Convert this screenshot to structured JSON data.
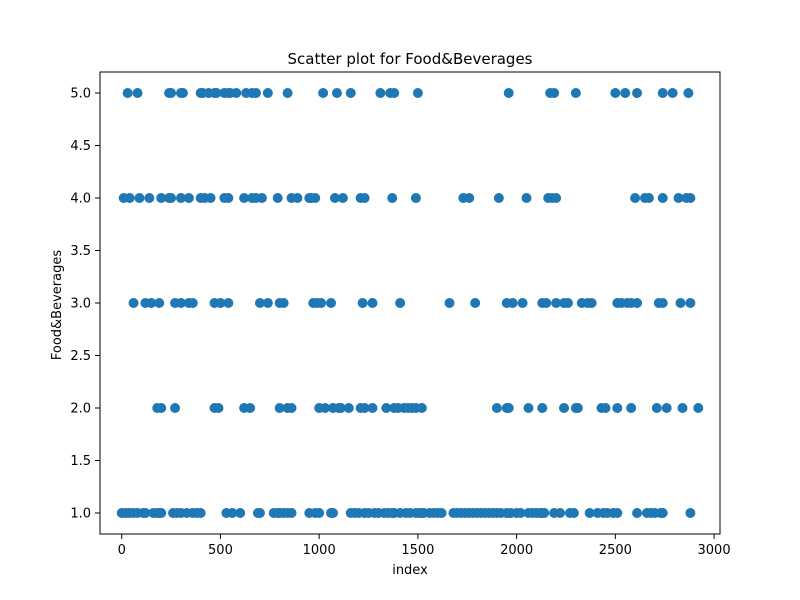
{
  "chart_data": {
    "type": "scatter",
    "title": "Scatter plot for Food&Beverages",
    "xlabel": "index",
    "ylabel": "Food&Beverages",
    "xlim": [
      -110,
      3030
    ],
    "ylim": [
      0.8,
      5.2
    ],
    "xticks": [
      0,
      500,
      1000,
      1500,
      2000,
      2500,
      3000
    ],
    "yticks": [
      1.0,
      1.5,
      2.0,
      2.5,
      3.0,
      3.5,
      4.0,
      4.5,
      5.0
    ],
    "ytick_labels": [
      "1.0",
      "1.5",
      "2.0",
      "2.5",
      "3.0",
      "3.5",
      "4.0",
      "4.5",
      "5.0"
    ],
    "marker_color": "#1f77b4",
    "grid": false,
    "series": [
      {
        "points": [
          [
            30,
            5
          ],
          [
            80,
            5
          ],
          [
            240,
            5
          ],
          [
            250,
            5
          ],
          [
            300,
            5
          ],
          [
            310,
            5
          ],
          [
            400,
            5
          ],
          [
            410,
            5
          ],
          [
            440,
            5
          ],
          [
            470,
            5
          ],
          [
            480,
            5
          ],
          [
            520,
            5
          ],
          [
            540,
            5
          ],
          [
            550,
            5
          ],
          [
            580,
            5
          ],
          [
            630,
            5
          ],
          [
            660,
            5
          ],
          [
            680,
            5
          ],
          [
            740,
            5
          ],
          [
            840,
            5
          ],
          [
            1020,
            5
          ],
          [
            1090,
            5
          ],
          [
            1160,
            5
          ],
          [
            1310,
            5
          ],
          [
            1360,
            5
          ],
          [
            1380,
            5
          ],
          [
            1500,
            5
          ],
          [
            1960,
            5
          ],
          [
            2170,
            5
          ],
          [
            2190,
            5
          ],
          [
            2300,
            5
          ],
          [
            2500,
            5
          ],
          [
            2550,
            5
          ],
          [
            2610,
            5
          ],
          [
            2740,
            5
          ],
          [
            2790,
            5
          ],
          [
            2870,
            5
          ],
          [
            10,
            4
          ],
          [
            40,
            4
          ],
          [
            90,
            4
          ],
          [
            140,
            4
          ],
          [
            200,
            4
          ],
          [
            240,
            4
          ],
          [
            250,
            4
          ],
          [
            300,
            4
          ],
          [
            340,
            4
          ],
          [
            400,
            4
          ],
          [
            420,
            4
          ],
          [
            450,
            4
          ],
          [
            520,
            4
          ],
          [
            540,
            4
          ],
          [
            620,
            4
          ],
          [
            660,
            4
          ],
          [
            680,
            4
          ],
          [
            710,
            4
          ],
          [
            790,
            4
          ],
          [
            860,
            4
          ],
          [
            890,
            4
          ],
          [
            950,
            4
          ],
          [
            960,
            4
          ],
          [
            980,
            4
          ],
          [
            1080,
            4
          ],
          [
            1120,
            4
          ],
          [
            1210,
            4
          ],
          [
            1230,
            4
          ],
          [
            1370,
            4
          ],
          [
            1490,
            4
          ],
          [
            1730,
            4
          ],
          [
            1760,
            4
          ],
          [
            1910,
            4
          ],
          [
            2050,
            4
          ],
          [
            2160,
            4
          ],
          [
            2180,
            4
          ],
          [
            2200,
            4
          ],
          [
            2600,
            4
          ],
          [
            2650,
            4
          ],
          [
            2670,
            4
          ],
          [
            2740,
            4
          ],
          [
            2820,
            4
          ],
          [
            2860,
            4
          ],
          [
            2880,
            4
          ],
          [
            60,
            3
          ],
          [
            120,
            3
          ],
          [
            150,
            3
          ],
          [
            190,
            3
          ],
          [
            270,
            3
          ],
          [
            300,
            3
          ],
          [
            340,
            3
          ],
          [
            360,
            3
          ],
          [
            470,
            3
          ],
          [
            500,
            3
          ],
          [
            540,
            3
          ],
          [
            700,
            3
          ],
          [
            740,
            3
          ],
          [
            800,
            3
          ],
          [
            820,
            3
          ],
          [
            970,
            3
          ],
          [
            990,
            3
          ],
          [
            1010,
            3
          ],
          [
            1060,
            3
          ],
          [
            1220,
            3
          ],
          [
            1270,
            3
          ],
          [
            1410,
            3
          ],
          [
            1660,
            3
          ],
          [
            1790,
            3
          ],
          [
            1950,
            3
          ],
          [
            1980,
            3
          ],
          [
            2030,
            3
          ],
          [
            2130,
            3
          ],
          [
            2150,
            3
          ],
          [
            2200,
            3
          ],
          [
            2240,
            3
          ],
          [
            2260,
            3
          ],
          [
            2330,
            3
          ],
          [
            2360,
            3
          ],
          [
            2380,
            3
          ],
          [
            2510,
            3
          ],
          [
            2530,
            3
          ],
          [
            2560,
            3
          ],
          [
            2580,
            3
          ],
          [
            2610,
            3
          ],
          [
            2720,
            3
          ],
          [
            2740,
            3
          ],
          [
            2830,
            3
          ],
          [
            2880,
            3
          ],
          [
            180,
            2
          ],
          [
            200,
            2
          ],
          [
            270,
            2
          ],
          [
            470,
            2
          ],
          [
            490,
            2
          ],
          [
            620,
            2
          ],
          [
            650,
            2
          ],
          [
            800,
            2
          ],
          [
            840,
            2
          ],
          [
            860,
            2
          ],
          [
            1000,
            2
          ],
          [
            1030,
            2
          ],
          [
            1070,
            2
          ],
          [
            1100,
            2
          ],
          [
            1110,
            2
          ],
          [
            1150,
            2
          ],
          [
            1210,
            2
          ],
          [
            1230,
            2
          ],
          [
            1270,
            2
          ],
          [
            1340,
            2
          ],
          [
            1380,
            2
          ],
          [
            1400,
            2
          ],
          [
            1430,
            2
          ],
          [
            1450,
            2
          ],
          [
            1470,
            2
          ],
          [
            1490,
            2
          ],
          [
            1520,
            2
          ],
          [
            1900,
            2
          ],
          [
            1950,
            2
          ],
          [
            1960,
            2
          ],
          [
            2060,
            2
          ],
          [
            2130,
            2
          ],
          [
            2240,
            2
          ],
          [
            2300,
            2
          ],
          [
            2310,
            2
          ],
          [
            2430,
            2
          ],
          [
            2450,
            2
          ],
          [
            2510,
            2
          ],
          [
            2580,
            2
          ],
          [
            2710,
            2
          ],
          [
            2760,
            2
          ],
          [
            2840,
            2
          ],
          [
            2920,
            2
          ],
          [
            0,
            1
          ],
          [
            20,
            1
          ],
          [
            40,
            1
          ],
          [
            60,
            1
          ],
          [
            80,
            1
          ],
          [
            110,
            1
          ],
          [
            120,
            1
          ],
          [
            160,
            1
          ],
          [
            180,
            1
          ],
          [
            190,
            1
          ],
          [
            200,
            1
          ],
          [
            260,
            1
          ],
          [
            280,
            1
          ],
          [
            300,
            1
          ],
          [
            330,
            1
          ],
          [
            360,
            1
          ],
          [
            380,
            1
          ],
          [
            400,
            1
          ],
          [
            530,
            1
          ],
          [
            560,
            1
          ],
          [
            600,
            1
          ],
          [
            690,
            1
          ],
          [
            700,
            1
          ],
          [
            770,
            1
          ],
          [
            790,
            1
          ],
          [
            800,
            1
          ],
          [
            820,
            1
          ],
          [
            840,
            1
          ],
          [
            860,
            1
          ],
          [
            950,
            1
          ],
          [
            980,
            1
          ],
          [
            1000,
            1
          ],
          [
            1060,
            1
          ],
          [
            1070,
            1
          ],
          [
            1160,
            1
          ],
          [
            1180,
            1
          ],
          [
            1200,
            1
          ],
          [
            1230,
            1
          ],
          [
            1250,
            1
          ],
          [
            1280,
            1
          ],
          [
            1300,
            1
          ],
          [
            1330,
            1
          ],
          [
            1350,
            1
          ],
          [
            1370,
            1
          ],
          [
            1380,
            1
          ],
          [
            1410,
            1
          ],
          [
            1440,
            1
          ],
          [
            1460,
            1
          ],
          [
            1490,
            1
          ],
          [
            1510,
            1
          ],
          [
            1520,
            1
          ],
          [
            1530,
            1
          ],
          [
            1560,
            1
          ],
          [
            1580,
            1
          ],
          [
            1600,
            1
          ],
          [
            1620,
            1
          ],
          [
            1680,
            1
          ],
          [
            1700,
            1
          ],
          [
            1720,
            1
          ],
          [
            1740,
            1
          ],
          [
            1760,
            1
          ],
          [
            1780,
            1
          ],
          [
            1800,
            1
          ],
          [
            1820,
            1
          ],
          [
            1840,
            1
          ],
          [
            1860,
            1
          ],
          [
            1880,
            1
          ],
          [
            1900,
            1
          ],
          [
            1920,
            1
          ],
          [
            1950,
            1
          ],
          [
            1970,
            1
          ],
          [
            2000,
            1
          ],
          [
            2020,
            1
          ],
          [
            2060,
            1
          ],
          [
            2080,
            1
          ],
          [
            2100,
            1
          ],
          [
            2120,
            1
          ],
          [
            2130,
            1
          ],
          [
            2140,
            1
          ],
          [
            2190,
            1
          ],
          [
            2220,
            1
          ],
          [
            2270,
            1
          ],
          [
            2290,
            1
          ],
          [
            2370,
            1
          ],
          [
            2410,
            1
          ],
          [
            2440,
            1
          ],
          [
            2460,
            1
          ],
          [
            2490,
            1
          ],
          [
            2510,
            1
          ],
          [
            2610,
            1
          ],
          [
            2660,
            1
          ],
          [
            2680,
            1
          ],
          [
            2700,
            1
          ],
          [
            2730,
            1
          ],
          [
            2740,
            1
          ],
          [
            2880,
            1
          ]
        ]
      }
    ]
  }
}
